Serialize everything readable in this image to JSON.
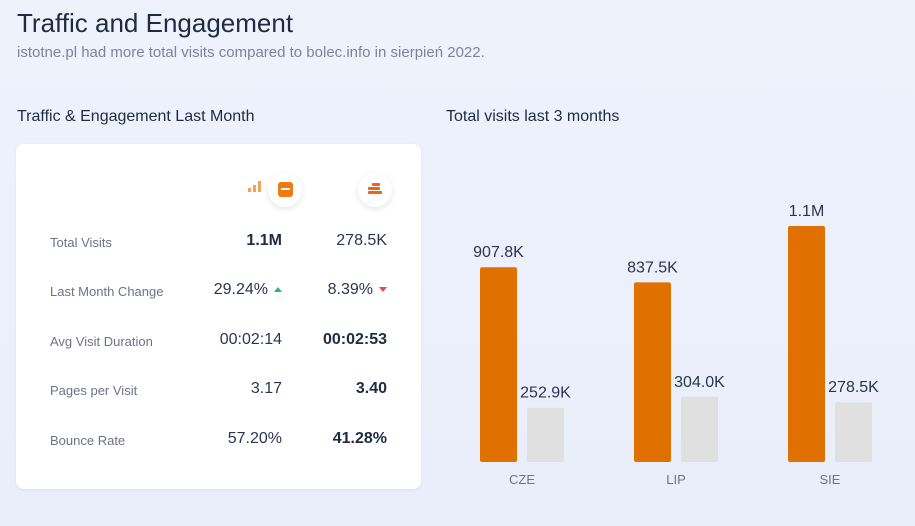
{
  "header": {
    "title": "Traffic and Engagement",
    "subtitle": "istotne.pl had more total visits compared to bolec.info in sierpień 2022."
  },
  "engagement": {
    "title": "Traffic & Engagement Last Month",
    "sites": [
      {
        "logo": "istotne-logo-icon",
        "color": "#f07a12"
      },
      {
        "logo": "bolec-logo-icon",
        "color": "#e8651c"
      }
    ],
    "rows": [
      {
        "label": "Total Visits",
        "v1": "1.1M",
        "v2": "278.5K",
        "bold": 1
      },
      {
        "label": "Last Month Change",
        "v1": "29.24%",
        "v2": "8.39%",
        "bold": 0,
        "v1_trend": "up",
        "v2_trend": "down"
      },
      {
        "label": "Avg Visit Duration",
        "v1": "00:02:14",
        "v2": "00:02:53",
        "bold": 2
      },
      {
        "label": "Pages per Visit",
        "v1": "3.17",
        "v2": "3.40",
        "bold": 2
      },
      {
        "label": "Bounce Rate",
        "v1": "57.20%",
        "v2": "41.28%",
        "bold": 2
      }
    ]
  },
  "chart_data": {
    "type": "bar",
    "title": "Total visits last 3 months",
    "categories": [
      "CZE",
      "LIP",
      "SIE"
    ],
    "series": [
      {
        "values": [
          907800,
          837500,
          1100000
        ],
        "labels": [
          "907.8K",
          "837.5K",
          "1.1M"
        ],
        "color": "#e07000"
      },
      {
        "values": [
          252900,
          304000,
          278500
        ],
        "labels": [
          "252.9K",
          "304.0K",
          "278.5K"
        ],
        "color": "#e0e0e0"
      }
    ],
    "ylim": [
      0,
      1100000
    ],
    "grid": false
  }
}
